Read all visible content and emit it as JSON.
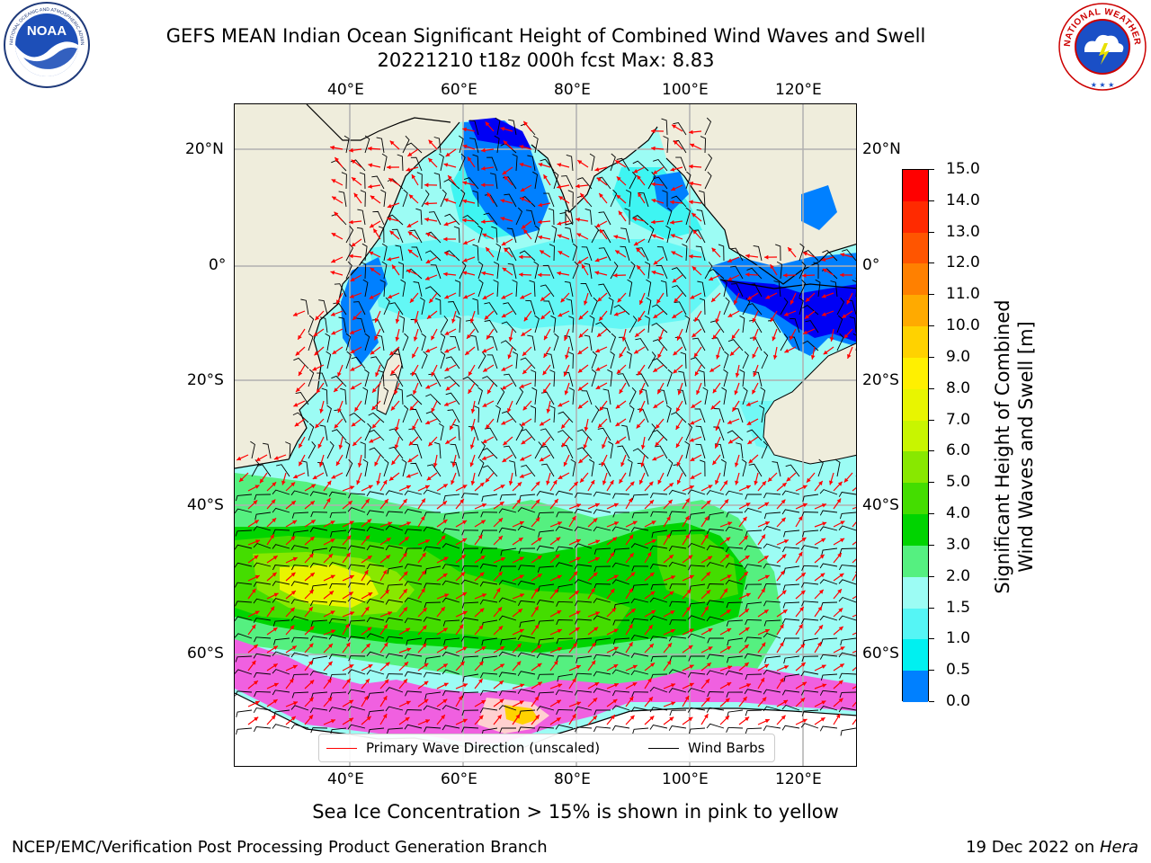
{
  "header": {
    "title_line1": "GEFS MEAN Indian Ocean Significant Height of Combined Wind Waves and Swell",
    "title_line2": "20221210 t18z 000h fcst   Max: 8.83"
  },
  "logos": {
    "left": {
      "name": "noaa-logo",
      "text": "NOAA",
      "ring_text": "NATIONAL OCEANIC AND ATMOSPHERIC ADMINISTRATION · U.S. DEPARTMENT OF COMMERCE"
    },
    "right": {
      "name": "nws-logo",
      "ring_text": "NATIONAL WEATHER SERVICE"
    }
  },
  "map": {
    "lon_ticks": [
      "40°E",
      "60°E",
      "80°E",
      "100°E",
      "120°E"
    ],
    "lat_ticks": [
      "20°N",
      "0°",
      "20°S",
      "40°S",
      "60°S"
    ],
    "legend": {
      "wave_direction": "Primary Wave Direction (unscaled)",
      "wind_barbs": "Wind Barbs"
    },
    "colors": {
      "land": "#efeddc",
      "wave_arrow": "#ff0000",
      "barb": "#000000",
      "grid": "#b0b0b0"
    }
  },
  "colorbar": {
    "label_line1": "Significant Height of Combined",
    "label_line2": "Wind Waves and Swell [m]",
    "ticks": [
      "15.0",
      "14.0",
      "13.0",
      "12.0",
      "11.0",
      "10.0",
      "9.0",
      "8.0",
      "7.0",
      "6.0",
      "5.0",
      "4.0",
      "3.0",
      "2.0",
      "1.5",
      "1.0",
      "0.5",
      "0.0"
    ],
    "colors": [
      "#ff0000",
      "#ff2a00",
      "#ff5500",
      "#ff8000",
      "#ffaa00",
      "#ffd200",
      "#fff000",
      "#e8f500",
      "#c8f500",
      "#88e800",
      "#44dd00",
      "#00d400",
      "#55f080",
      "#9cfcf4",
      "#55f5f5",
      "#00f0f0",
      "#0080ff",
      "#0000f5"
    ]
  },
  "caption": "Sea Ice Concentration > 15% is shown in pink to yellow",
  "footer": {
    "left": "NCEP/EMC/Verification Post Processing Product Generation Branch",
    "right_prefix": "19 Dec 2022 on ",
    "right_host": "Hera"
  }
}
